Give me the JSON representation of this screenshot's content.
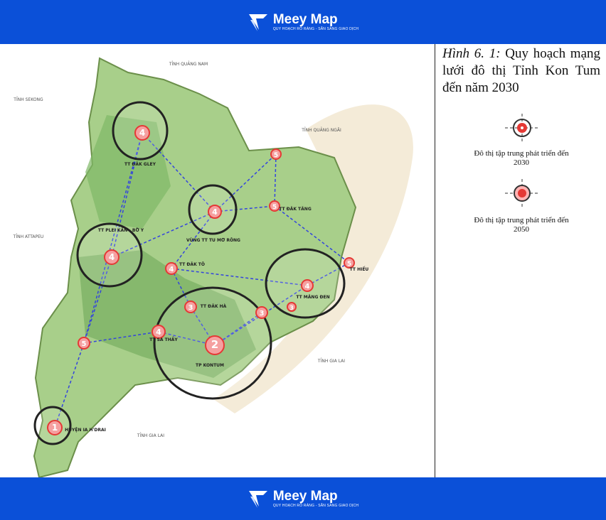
{
  "header": {
    "brand": "Meey Map",
    "tagline": "QUY HOẠCH RÕ RÀNG - SẴN SÀNG GIAO DỊCH"
  },
  "map": {
    "regions": [
      "TỈNH QUẢNG NAM",
      "TỈNH SEKONG",
      "TỈNH QUẢNG NGÃI",
      "TỈNH ATTAPEU",
      "TỈNH GIA LAI",
      "TỈNH GIA LAI"
    ],
    "cities": [
      {
        "rank": "4",
        "name": "TT ĐĂK GLEY"
      },
      {
        "rank": "5"
      },
      {
        "rank": "4",
        "name": "VÙNG TT TU MƠ RÔNG"
      },
      {
        "rank": "5",
        "name": "TT ĐĂK TĂNG"
      },
      {
        "rank": "4",
        "name": "TT PLEI KẦN - BỜ Y"
      },
      {
        "rank": "4",
        "name": "TT ĐĂK TÔ"
      },
      {
        "rank": "5",
        "name": "TT HIẾU"
      },
      {
        "rank": "4",
        "name": "TT MĂNG ĐEN"
      },
      {
        "rank": "3"
      },
      {
        "rank": "3"
      },
      {
        "rank": "3",
        "name": "TT ĐĂK HÀ"
      },
      {
        "rank": "4",
        "name": "TT SA THẦY"
      },
      {
        "rank": "2",
        "name": "TP KONTUM"
      },
      {
        "rank": "5"
      },
      {
        "rank": "1",
        "name": "HUYỆN IA H'DRAI"
      }
    ]
  },
  "caption": {
    "figure": "Hình 6. 1:",
    "text": "Quy hoạch mạng lưới đô thị Tỉnh Kon Tum đến năm 2030"
  },
  "legend": [
    "Đô thị tập trung phát triển đến 2030",
    "Đô thị tập trung phát triển đến 2050"
  ],
  "footer": {
    "brand": "Meey Map",
    "tagline": "QUY HOẠCH RÕ RÀNG - SẴN SÀNG GIAO DỊCH"
  }
}
